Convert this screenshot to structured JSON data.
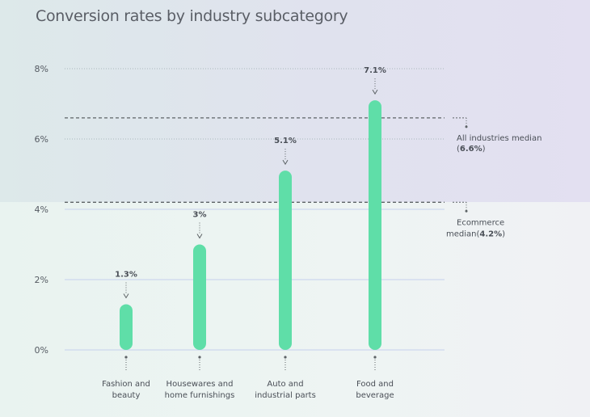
{
  "chart_data": {
    "type": "bar",
    "title": "Conversion rates by industry subcategory",
    "xlabel": "",
    "ylabel": "",
    "ylim": [
      0,
      8
    ],
    "yticks": [
      0,
      2,
      4,
      6,
      8
    ],
    "ytick_labels": [
      "0%",
      "2%",
      "4%",
      "6%",
      "8%"
    ],
    "grid": true,
    "categories": [
      [
        "Fashion and",
        "beauty"
      ],
      [
        "Housewares and",
        "home furnishings"
      ],
      [
        "Auto and",
        "industrial parts"
      ],
      [
        "Food and",
        "beverage"
      ]
    ],
    "values": [
      1.3,
      3,
      5.1,
      7.1
    ],
    "value_labels": [
      "1.3%",
      "3%",
      "5.1%",
      "7.1%"
    ],
    "bar_color": "#5fdea8",
    "reference_lines": [
      {
        "value": 6.6,
        "label_parts": [
          "All industries median",
          "(",
          "6.6%",
          ")"
        ]
      },
      {
        "value": 4.2,
        "label_parts": [
          "Ecommerce",
          "median(",
          "4.2%",
          ")"
        ]
      }
    ]
  },
  "colors": {
    "bar": "#5fdea8",
    "gridline_dotted": "#a9b7bb",
    "gridline_solid": "#cdd8ee",
    "reference_line": "#5d6366",
    "text": "#4a4f57"
  }
}
